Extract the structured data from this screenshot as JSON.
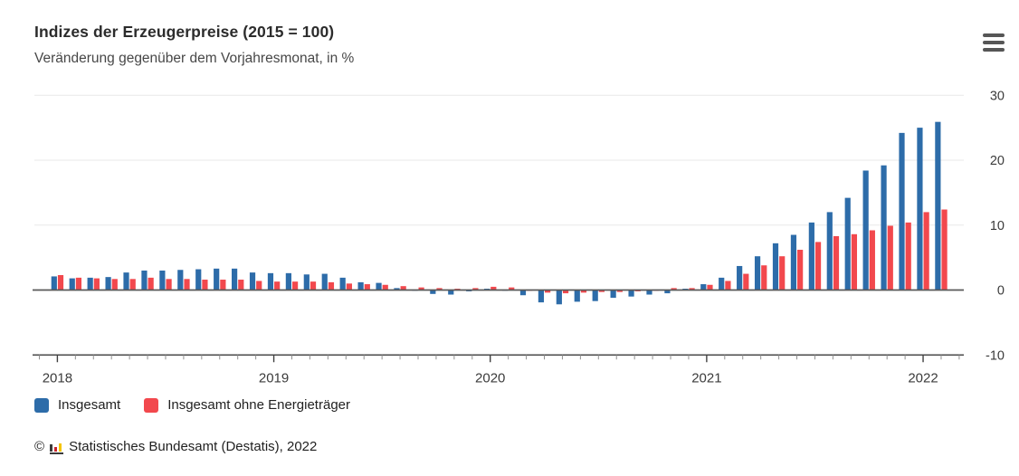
{
  "header": {
    "title": "Indizes der Erzeugerpreise (2015 = 100)",
    "subtitle": "Veränderung gegenüber dem Vorjahresmonat, in %"
  },
  "colors": {
    "insgesamt": "#2d6ca9",
    "ohne_energie": "#f2484d",
    "grid": "#e9e9e9",
    "zero_line": "#595959",
    "axis_line": "#4a4a4a",
    "tick_minor": "#8f8f8f",
    "tick_year": "#3f3f3f",
    "axis_text": "#3b3b3b"
  },
  "chart_data": {
    "type": "bar",
    "title": "Indizes der Erzeugerpreise (2015 = 100)",
    "subtitle": "Veränderung gegenüber dem Vorjahresmonat, in %",
    "x_start": "2018-01",
    "x_end": "2022-02",
    "months_per_year": 12,
    "year_labels": [
      "2018",
      "2019",
      "2020",
      "2021",
      "2022"
    ],
    "y_ticks": [
      30,
      20,
      10,
      0,
      -10
    ],
    "ylim": [
      -10,
      30
    ],
    "grid": true,
    "legend_position": "bottom-left",
    "series": [
      {
        "name": "Insgesamt",
        "color": "#2d6ca9",
        "values": [
          2.1,
          1.8,
          1.9,
          2.0,
          2.7,
          3.0,
          3.0,
          3.1,
          3.2,
          3.3,
          3.3,
          2.7,
          2.6,
          2.6,
          2.4,
          2.5,
          1.9,
          1.2,
          1.1,
          0.3,
          -0.1,
          -0.6,
          -0.7,
          -0.2,
          0.2,
          -0.1,
          -0.8,
          -1.9,
          -2.2,
          -1.8,
          -1.7,
          -1.2,
          -1.0,
          -0.7,
          -0.5,
          0.2,
          0.9,
          1.9,
          3.7,
          5.2,
          7.2,
          8.5,
          10.4,
          12.0,
          14.2,
          18.4,
          19.2,
          24.2,
          25.0,
          25.9
        ]
      },
      {
        "name": "Insgesamt ohne Energieträger",
        "color": "#f2484d",
        "values": [
          2.3,
          1.9,
          1.8,
          1.7,
          1.7,
          1.9,
          1.7,
          1.7,
          1.6,
          1.6,
          1.6,
          1.4,
          1.3,
          1.3,
          1.3,
          1.2,
          1.0,
          0.9,
          0.8,
          0.6,
          0.4,
          0.3,
          0.2,
          0.3,
          0.5,
          0.4,
          -0.1,
          -0.4,
          -0.5,
          -0.4,
          -0.3,
          -0.3,
          -0.2,
          -0.1,
          0.3,
          0.3,
          0.8,
          1.4,
          2.5,
          3.8,
          5.2,
          6.2,
          7.4,
          8.3,
          8.6,
          9.2,
          9.9,
          10.4,
          12.0,
          12.4
        ]
      }
    ]
  },
  "footer": {
    "copyright": "©",
    "source": "Statistisches Bundesamt (Destatis), 2022"
  }
}
